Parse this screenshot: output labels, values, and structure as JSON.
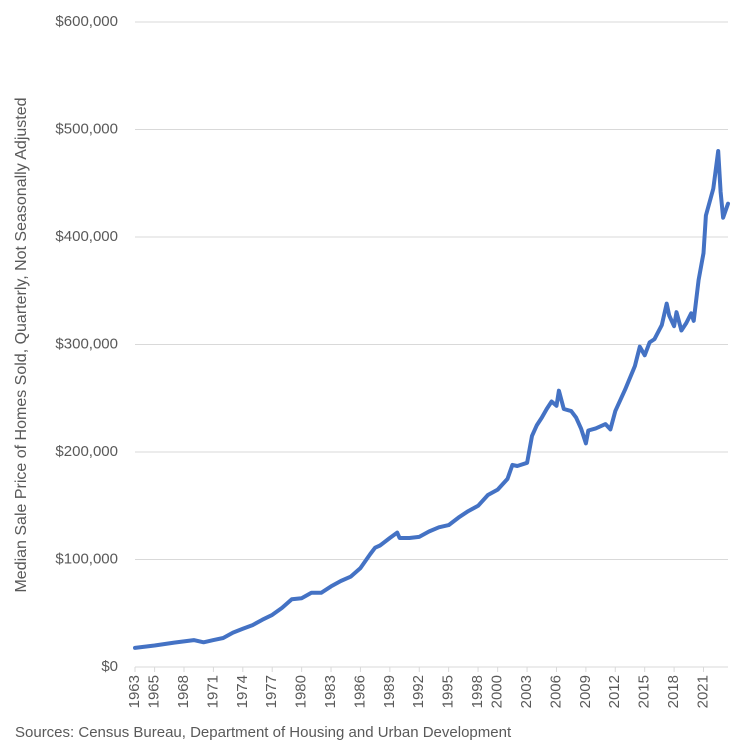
{
  "chart_data": {
    "type": "line",
    "y_axis_label": "Median Sale Price of Homes Sold, Quarterly, Not Seasonally Adjusted",
    "source": "Sources: Census Bureau, Department of Housing and Urban Development",
    "x": [
      1963,
      1965,
      1967,
      1969,
      1970,
      1971,
      1972,
      1973,
      1974,
      1975,
      1976,
      1977,
      1978,
      1979,
      1980,
      1981,
      1982,
      1983,
      1984,
      1985,
      1986,
      1987,
      1987.5,
      1988,
      1989,
      1989.75,
      1990,
      1991,
      1992,
      1993,
      1994,
      1995,
      1996,
      1997,
      1998,
      1999,
      2000,
      2001,
      2001.5,
      2002,
      2003,
      2003.5,
      2004,
      2004.5,
      2005,
      2005.5,
      2006,
      2006.25,
      2006.75,
      2007.5,
      2008,
      2008.5,
      2009,
      2009.25,
      2010,
      2011,
      2011.5,
      2012,
      2013,
      2014,
      2014.5,
      2015,
      2015.5,
      2016,
      2016.75,
      2017.25,
      2017.5,
      2018,
      2018.25,
      2018.75,
      2019.25,
      2019.75,
      2020,
      2020.5,
      2021,
      2021.25,
      2022,
      2022.5,
      2022.75,
      2023,
      2023.5
    ],
    "series": [
      {
        "color": "#4472c4",
        "values": [
          17800,
          20000,
          22700,
          25000,
          23000,
          25000,
          27000,
          32000,
          35500,
          39000,
          44000,
          48500,
          55000,
          63000,
          64000,
          69000,
          69000,
          75000,
          80000,
          84000,
          92000,
          105000,
          111000,
          113000,
          120000,
          125000,
          120000,
          120000,
          121000,
          126000,
          130000,
          132000,
          139000,
          145000,
          150000,
          160000,
          165000,
          175000,
          188000,
          187000,
          190000,
          215000,
          225000,
          232000,
          240000,
          247000,
          243000,
          257000,
          240000,
          238000,
          232000,
          222000,
          208000,
          220000,
          222000,
          226000,
          221000,
          238000,
          258000,
          280000,
          298000,
          290000,
          302000,
          305000,
          318000,
          338000,
          327000,
          317000,
          330000,
          313000,
          320000,
          329000,
          322000,
          360000,
          385000,
          420000,
          445000,
          480000,
          442000,
          418000,
          431000
        ]
      }
    ],
    "xlim": [
      1963,
      2023.5
    ],
    "xticks": [
      1963,
      1965,
      1968,
      1971,
      1974,
      1977,
      1980,
      1983,
      1986,
      1989,
      1992,
      1995,
      1998,
      2000,
      2003,
      2006,
      2009,
      2012,
      2015,
      2018,
      2021
    ],
    "ylim": [
      0,
      600000
    ],
    "yticks": [
      {
        "value": 0,
        "label": "$0"
      },
      {
        "value": 100000,
        "label": "$100,000"
      },
      {
        "value": 200000,
        "label": "$200,000"
      },
      {
        "value": 300000,
        "label": "$300,000"
      },
      {
        "value": 400000,
        "label": "$400,000"
      },
      {
        "value": 500000,
        "label": "$500,000"
      },
      {
        "value": 600000,
        "label": "$600,000"
      }
    ],
    "grid": true
  }
}
